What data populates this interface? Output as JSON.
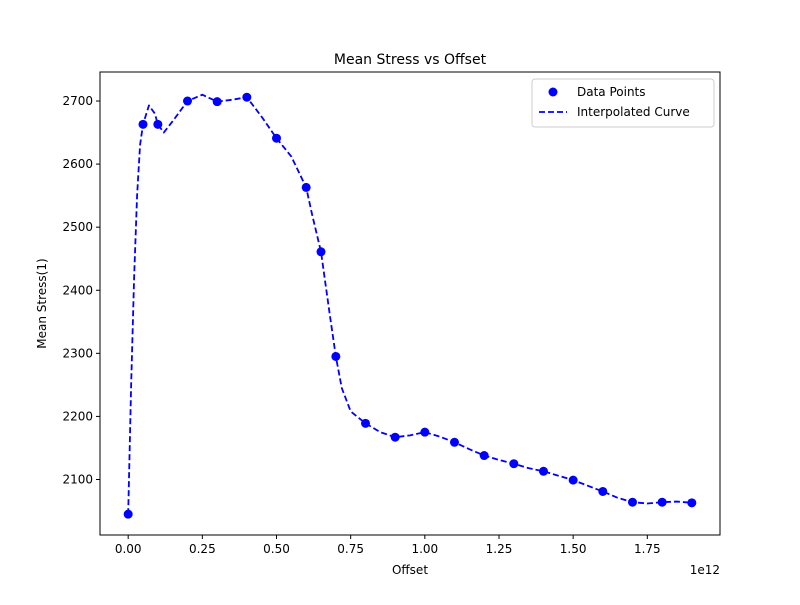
{
  "chart_data": {
    "type": "scatter",
    "title": "Mean Stress vs Offset",
    "xlabel": "Offset",
    "ylabel": "Mean Stress(1)",
    "x_multiplier_label": "1e12",
    "x_multiplier": 1000000000000.0,
    "xlim": [
      -0.095,
      1.995
    ],
    "ylim": [
      2012,
      2746
    ],
    "x_ticks": [
      0.0,
      0.25,
      0.5,
      0.75,
      1.0,
      1.25,
      1.5,
      1.75
    ],
    "x_tick_labels": [
      "0.00",
      "0.25",
      "0.50",
      "0.75",
      "1.00",
      "1.25",
      "1.50",
      "1.75"
    ],
    "y_ticks": [
      2100,
      2200,
      2300,
      2400,
      2500,
      2600,
      2700
    ],
    "y_tick_labels": [
      "2100",
      "2200",
      "2300",
      "2400",
      "2500",
      "2600",
      "2700"
    ],
    "grid": false,
    "legend_position": "top-right",
    "series": [
      {
        "name": "Data Points",
        "kind": "scatter",
        "color": "#0000ff",
        "x": [
          0.0,
          0.05,
          0.1,
          0.2,
          0.3,
          0.4,
          0.5,
          0.6,
          0.65,
          0.7,
          0.8,
          0.9,
          1.0,
          1.1,
          1.2,
          1.3,
          1.4,
          1.5,
          1.6,
          1.7,
          1.8,
          1.9
        ],
        "y": [
          2045,
          2663,
          2663,
          2700,
          2699,
          2706,
          2641,
          2563,
          2461,
          2295,
          2189,
          2167,
          2175,
          2159,
          2138,
          2125,
          2113,
          2099,
          2081,
          2064,
          2064,
          2063
        ]
      },
      {
        "name": "Interpolated Curve",
        "kind": "line",
        "style": "dashed",
        "color": "#0000ff",
        "x": [
          0.0,
          0.01,
          0.02,
          0.03,
          0.04,
          0.05,
          0.07,
          0.09,
          0.1,
          0.12,
          0.15,
          0.2,
          0.25,
          0.3,
          0.35,
          0.4,
          0.45,
          0.5,
          0.55,
          0.6,
          0.62,
          0.65,
          0.68,
          0.7,
          0.72,
          0.75,
          0.8,
          0.85,
          0.9,
          0.95,
          1.0,
          1.05,
          1.1,
          1.15,
          1.2,
          1.25,
          1.3,
          1.35,
          1.4,
          1.45,
          1.5,
          1.55,
          1.6,
          1.65,
          1.7,
          1.75,
          1.8,
          1.85,
          1.9
        ],
        "y": [
          2045,
          2250,
          2420,
          2550,
          2630,
          2663,
          2693,
          2680,
          2663,
          2650,
          2668,
          2700,
          2710,
          2699,
          2702,
          2706,
          2675,
          2641,
          2612,
          2563,
          2520,
          2461,
          2360,
          2295,
          2245,
          2208,
          2189,
          2175,
          2167,
          2170,
          2175,
          2168,
          2159,
          2148,
          2138,
          2131,
          2125,
          2118,
          2113,
          2106,
          2099,
          2090,
          2081,
          2071,
          2064,
          2062,
          2064,
          2065,
          2063
        ]
      }
    ]
  }
}
